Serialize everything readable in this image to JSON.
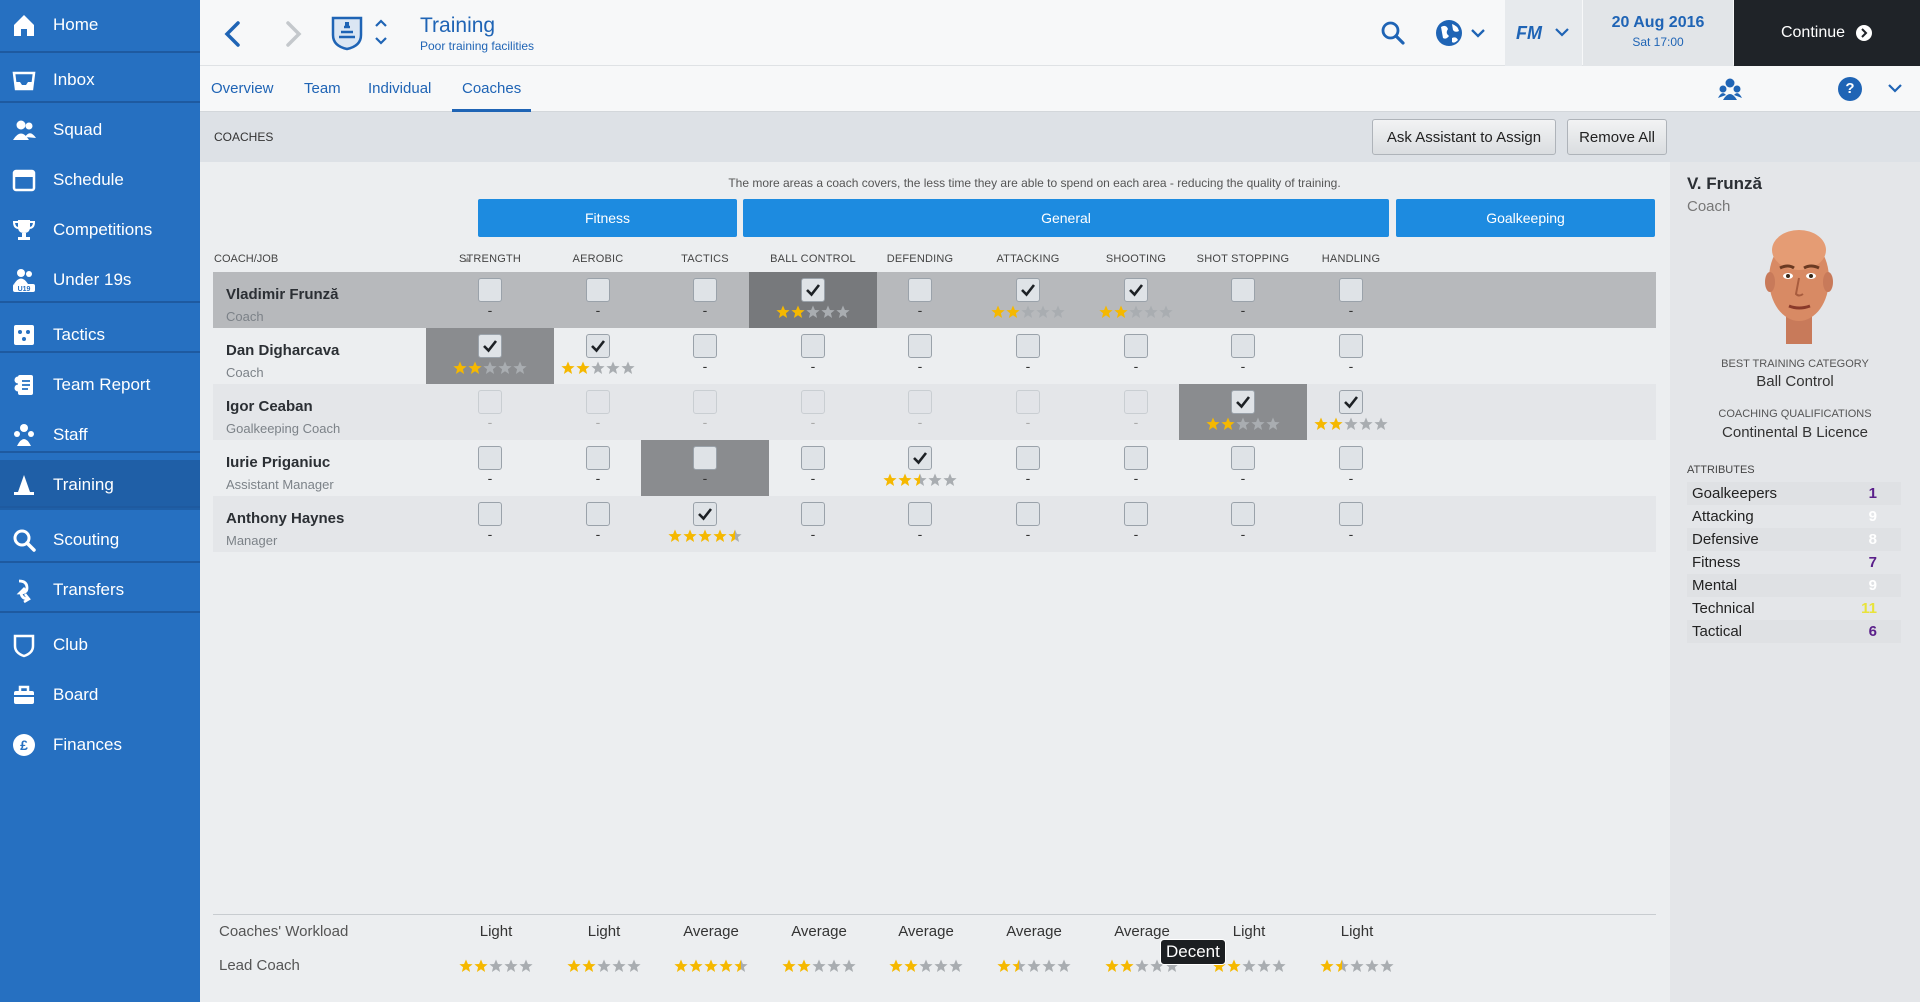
{
  "sidebar": {
    "items": [
      {
        "label": "Home",
        "icon": "home-icon"
      },
      {
        "label": "Inbox",
        "icon": "inbox-icon"
      },
      {
        "label": "Squad",
        "icon": "squad-icon"
      },
      {
        "label": "Schedule",
        "icon": "schedule-icon"
      },
      {
        "label": "Competitions",
        "icon": "trophy-icon"
      },
      {
        "label": "Under 19s",
        "icon": "under19-icon",
        "badge": "U19"
      },
      {
        "label": "Tactics",
        "icon": "tactics-icon"
      },
      {
        "label": "Team Report",
        "icon": "team-report-icon"
      },
      {
        "label": "Staff",
        "icon": "staff-icon"
      },
      {
        "label": "Training",
        "icon": "training-icon",
        "active": true
      },
      {
        "label": "Scouting",
        "icon": "scouting-icon"
      },
      {
        "label": "Transfers",
        "icon": "transfers-icon"
      },
      {
        "label": "Club",
        "icon": "club-icon"
      },
      {
        "label": "Board",
        "icon": "board-icon"
      },
      {
        "label": "Finances",
        "icon": "finances-icon"
      }
    ]
  },
  "header": {
    "title": "Training",
    "subtitle": "Poor training facilities",
    "date": "20 Aug 2016",
    "time": "Sat 17:00",
    "continue_label": "Continue",
    "fm_label": "FM"
  },
  "tabs": [
    {
      "label": "Overview"
    },
    {
      "label": "Team"
    },
    {
      "label": "Individual"
    },
    {
      "label": "Coaches",
      "active": true
    }
  ],
  "coaches_bar": {
    "title": "COACHES",
    "assign_label": "Ask Assistant to Assign",
    "remove_label": "Remove All"
  },
  "info_text": "The more areas a coach covers, the less time they are able to spend on each area - reducing the quality of training.",
  "groups": [
    {
      "label": "Fitness"
    },
    {
      "label": "General"
    },
    {
      "label": "Goalkeeping"
    }
  ],
  "table": {
    "coach_header": "COACH/JOB",
    "columns": [
      "STRENGTH",
      "AEROBIC",
      "TACTICS",
      "BALL CONTROL",
      "DEFENDING",
      "ATTACKING",
      "SHOOTING",
      "SHOT STOPPING",
      "HANDLING"
    ],
    "empty_mark": "-",
    "rows": [
      {
        "name": "Vladimir Frunză",
        "job": "Coach",
        "selected": true,
        "cells": [
          {
            "c": false
          },
          {
            "c": false
          },
          {
            "c": false
          },
          {
            "c": true,
            "s": 2,
            "hl": true
          },
          {
            "c": false
          },
          {
            "c": true,
            "s": 2
          },
          {
            "c": true,
            "s": 2
          },
          {
            "c": false
          },
          {
            "c": false
          }
        ]
      },
      {
        "name": "Dan Digharcava",
        "job": "Coach",
        "cells": [
          {
            "c": true,
            "s": 2,
            "hl": true
          },
          {
            "c": true,
            "s": 2
          },
          {
            "c": false
          },
          {
            "c": false
          },
          {
            "c": false
          },
          {
            "c": false
          },
          {
            "c": false
          },
          {
            "c": false
          },
          {
            "c": false
          }
        ]
      },
      {
        "name": "Igor Ceaban",
        "job": "Goalkeeping Coach",
        "cells": [
          {
            "c": false,
            "d": true
          },
          {
            "c": false,
            "d": true
          },
          {
            "c": false,
            "d": true
          },
          {
            "c": false,
            "d": true
          },
          {
            "c": false,
            "d": true
          },
          {
            "c": false,
            "d": true
          },
          {
            "c": false,
            "d": true
          },
          {
            "c": true,
            "s": 2,
            "hl": true
          },
          {
            "c": true,
            "s": 2
          }
        ]
      },
      {
        "name": "Iurie Priganiuc",
        "job": "Assistant Manager",
        "cells": [
          {
            "c": false
          },
          {
            "c": false
          },
          {
            "c": false,
            "hl": true
          },
          {
            "c": false
          },
          {
            "c": true,
            "s": 2.5
          },
          {
            "c": false
          },
          {
            "c": false
          },
          {
            "c": false
          },
          {
            "c": false
          }
        ]
      },
      {
        "name": "Anthony Haynes",
        "job": "Manager",
        "cells": [
          {
            "c": false
          },
          {
            "c": false
          },
          {
            "c": true,
            "s": 4.5
          },
          {
            "c": false
          },
          {
            "c": false
          },
          {
            "c": false
          },
          {
            "c": false
          },
          {
            "c": false
          },
          {
            "c": false
          }
        ]
      }
    ]
  },
  "summary": {
    "workload_label": "Coaches' Workload",
    "lead_label": "Lead Coach",
    "workload": [
      "Light",
      "Light",
      "Average",
      "Average",
      "Average",
      "Average",
      "Average",
      "Light",
      "Light"
    ],
    "lead_stars": [
      2,
      2,
      4.5,
      2,
      2,
      1.5,
      2,
      2,
      1.5
    ],
    "tooltip": "Decent"
  },
  "panel": {
    "name": "V. Frunză",
    "role": "Coach",
    "best_cat_label": "BEST TRAINING CATEGORY",
    "best_cat": "Ball Control",
    "qual_label": "COACHING QUALIFICATIONS",
    "qual": "Continental B Licence",
    "attributes_label": "ATTRIBUTES",
    "attributes": [
      {
        "name": "Goalkeepers",
        "value": "1",
        "color": "#5a1f8a"
      },
      {
        "name": "Attacking",
        "value": "9",
        "color": "#ffffff"
      },
      {
        "name": "Defensive",
        "value": "8",
        "color": "#ffffff"
      },
      {
        "name": "Fitness",
        "value": "7",
        "color": "#5a1f8a"
      },
      {
        "name": "Mental",
        "value": "9",
        "color": "#ffffff"
      },
      {
        "name": "Technical",
        "value": "11",
        "color": "#e8e33a"
      },
      {
        "name": "Tactical",
        "value": "6",
        "color": "#5a1f8a"
      }
    ]
  },
  "colors": {
    "accent": "#1d8be0",
    "sidebar": "#2670c1",
    "star": "#f5b800",
    "star_off": "#a9adb1"
  }
}
